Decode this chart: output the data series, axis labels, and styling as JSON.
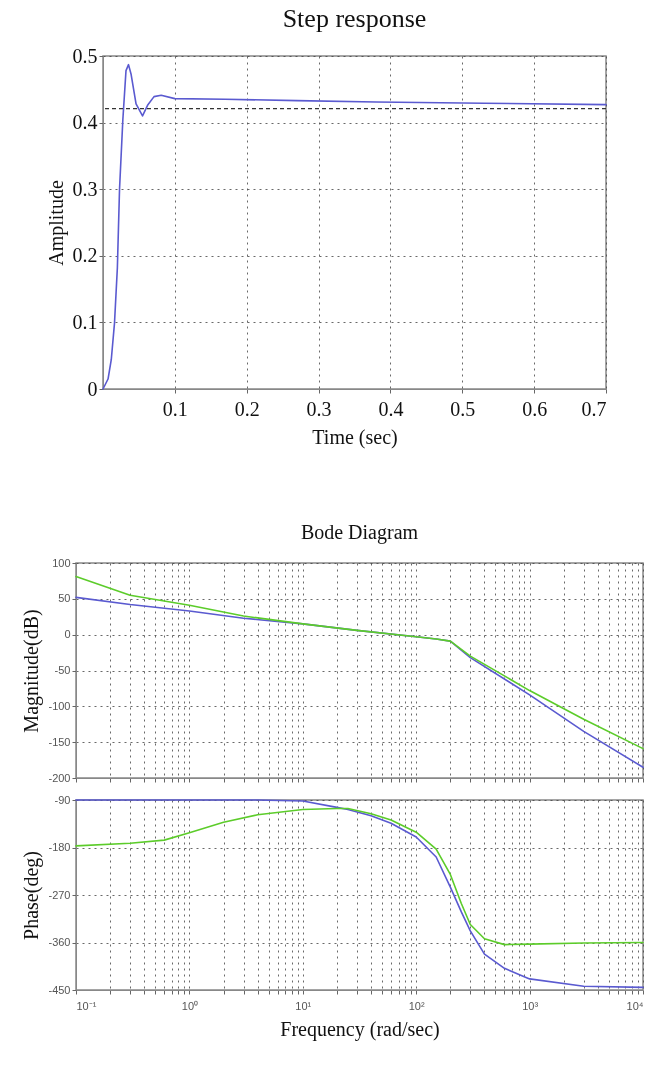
{
  "chart_data": [
    {
      "type": "line",
      "title": "Step response",
      "xlabel": "Time (sec)",
      "ylabel": "Amplitude",
      "x": [
        0,
        0.007,
        0.0115,
        0.016,
        0.02,
        0.023,
        0.0276,
        0.032,
        0.0355,
        0.039,
        0.046,
        0.055,
        0.062,
        0.071,
        0.081,
        0.1,
        0.17,
        0.27,
        0.38,
        0.53,
        0.7
      ],
      "series": [
        {
          "color": "#5a5ad0",
          "values": [
            0,
            0.015,
            0.044,
            0.099,
            0.182,
            0.3,
            0.404,
            0.478,
            0.487,
            0.473,
            0.428,
            0.41,
            0.426,
            0.439,
            0.441,
            0.436,
            0.435,
            0.433,
            0.431,
            0.429,
            0.427
          ]
        }
      ],
      "xlim": [
        0,
        0.7
      ],
      "xticks": [
        0.1,
        0.2,
        0.3,
        0.4,
        0.5,
        0.6,
        0.7
      ],
      "ylim": [
        0,
        0.5
      ],
      "yticks": [
        0,
        0.1,
        0.2,
        0.3,
        0.4,
        0.5
      ],
      "ref_lines": [
        {
          "axis": "y",
          "value": 0.421,
          "color": "#333333",
          "line_style": "dashed"
        }
      ],
      "grid": true
    },
    {
      "type": "line",
      "title": "Bode Diagram",
      "ylabel": "Magnitude(dB)",
      "log": "x",
      "tick_labels": "y",
      "x": [
        0.1,
        0.3,
        1,
        3,
        10,
        30,
        100,
        150,
        200,
        300,
        1000,
        3000,
        10000
      ],
      "series": [
        {
          "color": "#5a5ad0",
          "values": [
            52,
            42,
            33,
            23,
            15,
            6,
            -3,
            -6,
            -9,
            -32,
            -84,
            -135,
            -185
          ]
        },
        {
          "color": "#5ccc2a",
          "values": [
            81,
            55,
            41,
            26,
            15,
            6,
            -3,
            -6,
            -9,
            -30,
            -78,
            -118,
            -159
          ]
        }
      ],
      "xlim": [
        0.1,
        10000
      ],
      "xticks": [
        {
          "value": 0.1,
          "label": null
        },
        {
          "value": 0.2,
          "label": null
        },
        {
          "value": 0.3,
          "label": null
        },
        {
          "value": 0.4,
          "label": null
        },
        {
          "value": 0.5,
          "label": null
        },
        {
          "value": 0.6,
          "label": null
        },
        {
          "value": 0.7,
          "label": null
        },
        {
          "value": 0.8,
          "label": null
        },
        {
          "value": 0.9,
          "label": null
        },
        {
          "value": 1,
          "label": null
        },
        {
          "value": 2,
          "label": null
        },
        {
          "value": 3,
          "label": null
        },
        {
          "value": 4,
          "label": null
        },
        {
          "value": 5,
          "label": null
        },
        {
          "value": 6,
          "label": null
        },
        {
          "value": 7,
          "label": null
        },
        {
          "value": 8,
          "label": null
        },
        {
          "value": 9,
          "label": null
        },
        {
          "value": 10,
          "label": null
        },
        {
          "value": 20,
          "label": null
        },
        {
          "value": 30,
          "label": null
        },
        {
          "value": 40,
          "label": null
        },
        {
          "value": 50,
          "label": null
        },
        {
          "value": 60,
          "label": null
        },
        {
          "value": 70,
          "label": null
        },
        {
          "value": 80,
          "label": null
        },
        {
          "value": 90,
          "label": null
        },
        {
          "value": 100,
          "label": null
        },
        {
          "value": 200,
          "label": null
        },
        {
          "value": 300,
          "label": null
        },
        {
          "value": 400,
          "label": null
        },
        {
          "value": 500,
          "label": null
        },
        {
          "value": 600,
          "label": null
        },
        {
          "value": 700,
          "label": null
        },
        {
          "value": 800,
          "label": null
        },
        {
          "value": 900,
          "label": null
        },
        {
          "value": 1000,
          "label": null
        },
        {
          "value": 2000,
          "label": null
        },
        {
          "value": 3000,
          "label": null
        },
        {
          "value": 4000,
          "label": null
        },
        {
          "value": 5000,
          "label": null
        },
        {
          "value": 6000,
          "label": null
        },
        {
          "value": 7000,
          "label": null
        },
        {
          "value": 8000,
          "label": null
        },
        {
          "value": 9000,
          "label": null
        },
        {
          "value": 10000,
          "label": null
        }
      ],
      "ylim": [
        -200,
        100
      ],
      "yticks": [
        -200,
        -150,
        -100,
        -50,
        0,
        50,
        100
      ],
      "grid": true
    },
    {
      "type": "line",
      "xlabel": "Frequency (rad/sec)",
      "ylabel": "Phase(deg)",
      "log": "x",
      "x": [
        0.1,
        0.3,
        0.6,
        1,
        2,
        4,
        10,
        20,
        25,
        40,
        60,
        100,
        150,
        200,
        250,
        300,
        400,
        600,
        1000,
        3000,
        10000
      ],
      "series": [
        {
          "color": "#5a5ad0",
          "values": [
            -90,
            -90,
            -90,
            -90,
            -90,
            -90,
            -92,
            -104,
            -108,
            -120,
            -134,
            -160,
            -198,
            -255,
            -302,
            -338,
            -382,
            -409,
            -429,
            -443,
            -445
          ]
        },
        {
          "color": "#5ccc2a",
          "values": [
            -177,
            -172,
            -166,
            -152,
            -132,
            -118,
            -108,
            -106,
            -106,
            -116,
            -128,
            -151,
            -183,
            -231,
            -286,
            -326,
            -353,
            -364,
            -363,
            -361,
            -360
          ]
        }
      ],
      "xlim": [
        0.1,
        10000
      ],
      "xticks": [
        {
          "value": 0.1,
          "label": "10⁻¹"
        },
        {
          "value": 0.2,
          "label": null
        },
        {
          "value": 0.3,
          "label": null
        },
        {
          "value": 0.4,
          "label": null
        },
        {
          "value": 0.5,
          "label": null
        },
        {
          "value": 0.6,
          "label": null
        },
        {
          "value": 0.7,
          "label": null
        },
        {
          "value": 0.8,
          "label": null
        },
        {
          "value": 0.9,
          "label": null
        },
        {
          "value": 1,
          "label": "10⁰"
        },
        {
          "value": 2,
          "label": null
        },
        {
          "value": 3,
          "label": null
        },
        {
          "value": 4,
          "label": null
        },
        {
          "value": 5,
          "label": null
        },
        {
          "value": 6,
          "label": null
        },
        {
          "value": 7,
          "label": null
        },
        {
          "value": 8,
          "label": null
        },
        {
          "value": 9,
          "label": null
        },
        {
          "value": 10,
          "label": "10¹"
        },
        {
          "value": 20,
          "label": null
        },
        {
          "value": 30,
          "label": null
        },
        {
          "value": 40,
          "label": null
        },
        {
          "value": 50,
          "label": null
        },
        {
          "value": 60,
          "label": null
        },
        {
          "value": 70,
          "label": null
        },
        {
          "value": 80,
          "label": null
        },
        {
          "value": 90,
          "label": null
        },
        {
          "value": 100,
          "label": "10²"
        },
        {
          "value": 200,
          "label": null
        },
        {
          "value": 300,
          "label": null
        },
        {
          "value": 400,
          "label": null
        },
        {
          "value": 500,
          "label": null
        },
        {
          "value": 600,
          "label": null
        },
        {
          "value": 700,
          "label": null
        },
        {
          "value": 800,
          "label": null
        },
        {
          "value": 900,
          "label": null
        },
        {
          "value": 1000,
          "label": "10³"
        },
        {
          "value": 2000,
          "label": null
        },
        {
          "value": 3000,
          "label": null
        },
        {
          "value": 4000,
          "label": null
        },
        {
          "value": 5000,
          "label": null
        },
        {
          "value": 6000,
          "label": null
        },
        {
          "value": 7000,
          "label": null
        },
        {
          "value": 8000,
          "label": null
        },
        {
          "value": 9000,
          "label": null
        },
        {
          "value": 10000,
          "label": "10⁴"
        }
      ],
      "ylim": [
        -450,
        -90
      ],
      "yticks": [
        -450,
        -360,
        -270,
        -180,
        -90
      ],
      "grid": true
    }
  ]
}
